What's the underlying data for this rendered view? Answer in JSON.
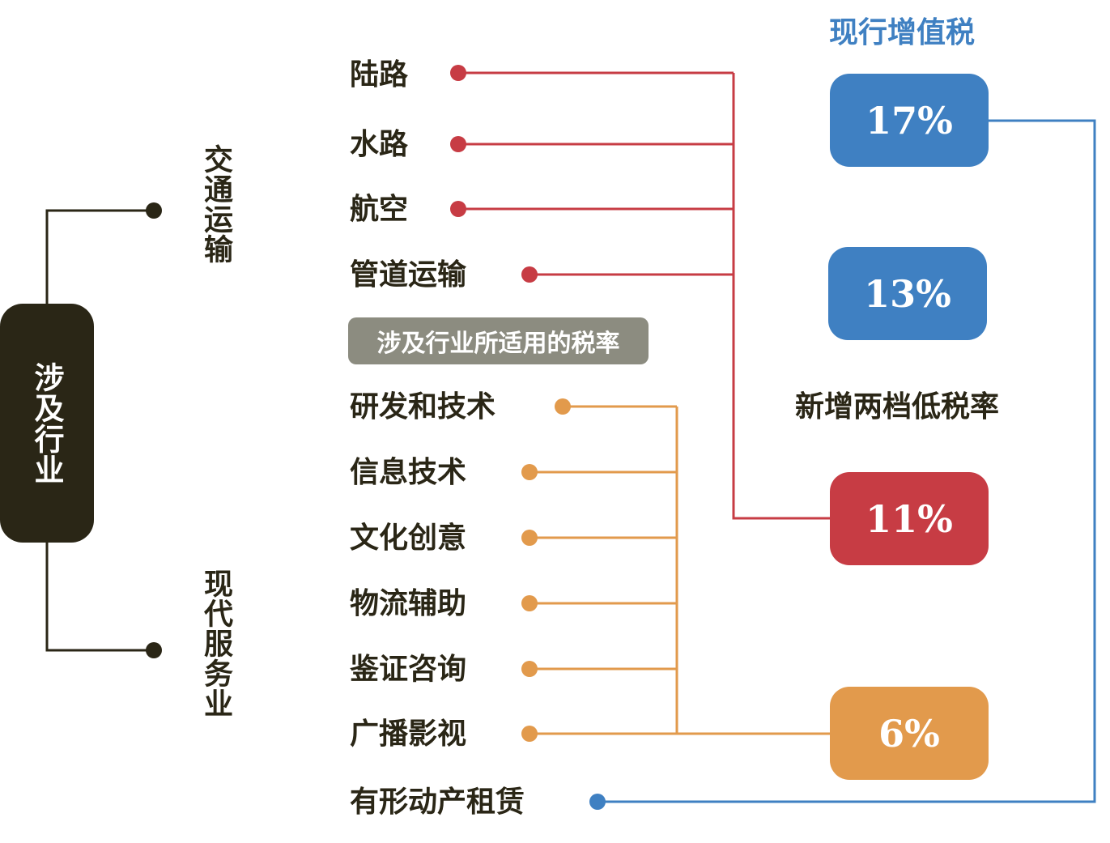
{
  "root": {
    "label": "涉及行业"
  },
  "categories": {
    "transport": "交通运输",
    "services": "现代服务业"
  },
  "transport_items": [
    "陆路",
    "水路",
    "航空",
    "管道运输"
  ],
  "tag": "涉及行业所适用的税率",
  "service_items": [
    "研发和技术",
    "信息技术",
    "文化创意",
    "物流辅助",
    "鉴证咨询",
    "广播影视"
  ],
  "leasing_item": "有形动产租赁",
  "headings": {
    "current_vat": "现行增值税",
    "new_low_rates": "新增两档低税率"
  },
  "rates": {
    "r17": "17%",
    "r13": "13%",
    "r11": "11%",
    "r6": "6%"
  },
  "colors": {
    "red": "#c73c44",
    "orange": "#e29a4c",
    "blue": "#3f80c2",
    "dark": "#2a2616",
    "gray": "#8c8c80"
  }
}
